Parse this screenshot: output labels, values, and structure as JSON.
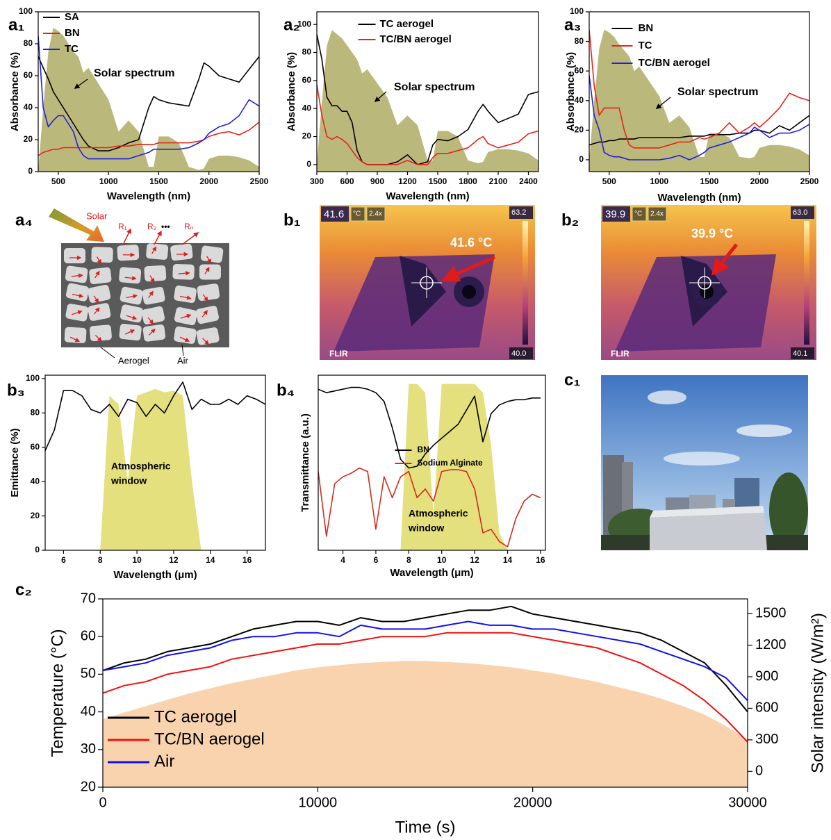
{
  "chart_data": [
    {
      "type": "line",
      "label": "a₁",
      "xlabel": "Wavelength (nm)",
      "ylabel": "Absorbance (%)",
      "x": [
        300,
        350,
        400,
        450,
        500,
        550,
        600,
        650,
        700,
        750,
        800,
        900,
        1000,
        1100,
        1200,
        1300,
        1400,
        1450,
        1500,
        1600,
        1700,
        1800,
        1900,
        1950,
        2000,
        2100,
        2200,
        2300,
        2400,
        2500
      ],
      "xlim": [
        300,
        2500
      ],
      "xticks": [
        500,
        1000,
        1500,
        2000,
        2500
      ],
      "ylim": [
        0,
        100
      ],
      "yticks": [
        0,
        20,
        40,
        60,
        80,
        100
      ],
      "legend": "upper left",
      "series": [
        {
          "name": "SA",
          "color": "#000000",
          "values": [
            72,
            65,
            58,
            50,
            45,
            40,
            35,
            30,
            25,
            20,
            16,
            13,
            13,
            15,
            18,
            20,
            40,
            47,
            45,
            43,
            42,
            41,
            58,
            68,
            66,
            60,
            58,
            56,
            64,
            72
          ]
        },
        {
          "name": "BN",
          "color": "#e8231b",
          "values": [
            10,
            12,
            13,
            14,
            14,
            15,
            15,
            15,
            15,
            15,
            15,
            15,
            15,
            16,
            16,
            17,
            17,
            17,
            18,
            18,
            18,
            18,
            19,
            20,
            22,
            24,
            25,
            23,
            26,
            31
          ]
        },
        {
          "name": "TC",
          "color": "#1f1fe0",
          "values": [
            85,
            40,
            28,
            32,
            35,
            35,
            30,
            25,
            15,
            10,
            8,
            8,
            8,
            8,
            8,
            10,
            12,
            14,
            14,
            14,
            14,
            15,
            18,
            20,
            24,
            28,
            30,
            35,
            45,
            41
          ]
        }
      ],
      "fill_series": {
        "label": "Solar spectrum",
        "color": "#aaa65a",
        "values": [
          0,
          40,
          75,
          90,
          88,
          85,
          80,
          75,
          72,
          62,
          65,
          55,
          45,
          25,
          32,
          25,
          3,
          3,
          22,
          22,
          18,
          3,
          1,
          2,
          8,
          10,
          10,
          9,
          7,
          3
        ]
      }
    },
    {
      "type": "line",
      "label": "a₂",
      "xlabel": "Wavelength (nm)",
      "ylabel": "Absorbance (%)",
      "x": [
        300,
        350,
        400,
        450,
        500,
        550,
        600,
        650,
        700,
        750,
        800,
        900,
        1000,
        1100,
        1200,
        1300,
        1400,
        1450,
        1500,
        1600,
        1700,
        1800,
        1900,
        1950,
        2000,
        2100,
        2200,
        2300,
        2400,
        2500
      ],
      "xlim": [
        300,
        2500
      ],
      "xticks": [
        300,
        600,
        900,
        1200,
        1500,
        1800,
        2100,
        2400
      ],
      "ylim": [
        -5,
        109
      ],
      "yticks": [
        0,
        20,
        40,
        60,
        80,
        100
      ],
      "legend": "upper center",
      "series": [
        {
          "name": "TC aerogel",
          "color": "#000000",
          "values": [
            93,
            75,
            48,
            42,
            42,
            38,
            38,
            30,
            10,
            2,
            0,
            0,
            0,
            2,
            7,
            0,
            2,
            14,
            18,
            17,
            20,
            25,
            38,
            43,
            38,
            30,
            33,
            36,
            50,
            52
          ]
        },
        {
          "name": "TC/BN aerogel",
          "color": "#e8231b",
          "values": [
            57,
            35,
            20,
            18,
            20,
            18,
            15,
            10,
            5,
            2,
            0,
            0,
            0,
            0,
            3,
            0,
            0,
            5,
            8,
            8,
            10,
            12,
            18,
            20,
            15,
            12,
            14,
            16,
            22,
            24
          ]
        }
      ],
      "fill_series": {
        "label": "Solar spectrum",
        "color": "#aaa65a",
        "values": [
          0,
          45,
          85,
          96,
          93,
          90,
          85,
          80,
          75,
          65,
          68,
          58,
          48,
          28,
          35,
          28,
          3,
          3,
          24,
          24,
          20,
          3,
          1,
          2,
          9,
          11,
          11,
          10,
          8,
          3
        ]
      }
    },
    {
      "type": "line",
      "label": "a₃",
      "xlabel": "Wavelength (nm)",
      "ylabel": "Absorbance (%)",
      "x": [
        300,
        350,
        400,
        450,
        500,
        550,
        600,
        650,
        700,
        750,
        800,
        900,
        1000,
        1100,
        1200,
        1300,
        1400,
        1450,
        1500,
        1600,
        1700,
        1800,
        1900,
        1950,
        2000,
        2100,
        2200,
        2300,
        2400,
        2500
      ],
      "xlim": [
        300,
        2500
      ],
      "xticks": [
        500,
        1000,
        1500,
        2000,
        2500
      ],
      "ylim": [
        -8,
        100
      ],
      "yticks": [
        0,
        20,
        40,
        60,
        80,
        100
      ],
      "legend": "upper center",
      "series": [
        {
          "name": "BN",
          "color": "#000000",
          "values": [
            10,
            11,
            12,
            12,
            13,
            13,
            14,
            14,
            14,
            14,
            15,
            15,
            15,
            15,
            15,
            16,
            16,
            16,
            17,
            17,
            17,
            18,
            18,
            20,
            20,
            18,
            23,
            20,
            25,
            30
          ]
        },
        {
          "name": "TC",
          "color": "#e8231b",
          "values": [
            88,
            50,
            30,
            35,
            35,
            35,
            35,
            20,
            10,
            8,
            8,
            8,
            8,
            10,
            12,
            12,
            15,
            14,
            15,
            18,
            25,
            18,
            22,
            25,
            22,
            28,
            35,
            45,
            42,
            40
          ]
        },
        {
          "name": "TC/BN aerogel",
          "color": "#1f1fe0",
          "values": [
            57,
            30,
            20,
            5,
            3,
            2,
            2,
            1,
            0,
            0,
            0,
            0,
            0,
            1,
            3,
            0,
            3,
            5,
            8,
            10,
            12,
            15,
            18,
            22,
            20,
            15,
            18,
            18,
            20,
            24
          ]
        }
      ],
      "fill_series": {
        "label": "Solar spectrum",
        "color": "#aaa65a",
        "values": [
          0,
          40,
          75,
          88,
          86,
          83,
          78,
          74,
          70,
          60,
          63,
          53,
          43,
          25,
          30,
          22,
          2,
          2,
          18,
          18,
          15,
          2,
          1,
          2,
          8,
          10,
          10,
          9,
          7,
          3
        ]
      }
    },
    {
      "type": "line",
      "label": "b₃",
      "xlabel": "Wavelength (μm)",
      "ylabel": "Emittance (%)",
      "x": [
        5,
        5.5,
        6,
        6.5,
        7,
        7.5,
        8,
        8.5,
        9,
        9.5,
        10,
        10.5,
        11,
        11.5,
        12,
        12.5,
        13,
        13.5,
        14,
        14.5,
        15,
        15.5,
        16,
        16.5,
        17
      ],
      "xlim": [
        5,
        17
      ],
      "xticks": [
        6,
        8,
        10,
        12,
        14,
        16
      ],
      "ylim": [
        0,
        102
      ],
      "yticks": [
        0,
        20,
        40,
        60,
        80,
        100
      ],
      "color": "#000000",
      "values": [
        58,
        70,
        93,
        93,
        90,
        82,
        80,
        85,
        78,
        88,
        86,
        78,
        85,
        80,
        90,
        98,
        82,
        88,
        85,
        85,
        88,
        85,
        90,
        88,
        85
      ],
      "fill_series": {
        "label": [
          "Atmospheric",
          "window"
        ],
        "color": "#dcd85c",
        "values": [
          0,
          0,
          0,
          0,
          0,
          0,
          0,
          90,
          85,
          40,
          90,
          92,
          94,
          92,
          93,
          90,
          40,
          0,
          0,
          0,
          0,
          0,
          0,
          0,
          0
        ]
      }
    },
    {
      "type": "line",
      "label": "b₄",
      "xlabel": "Wavelength (μm)",
      "ylabel": "Transmittance (a.u.)",
      "x": [
        2.5,
        3,
        3.5,
        4,
        4.5,
        5,
        5.5,
        6,
        6.5,
        7,
        7.5,
        8,
        8.5,
        9,
        9.5,
        10,
        10.5,
        11,
        11.5,
        12,
        12.5,
        13,
        13.5,
        14,
        14.5,
        15,
        15.5,
        16
      ],
      "xlim": [
        2.5,
        16.3
      ],
      "xticks": [
        4,
        6,
        8,
        10,
        12,
        14,
        16
      ],
      "ylim": [
        0,
        100
      ],
      "legend": "center",
      "series": [
        {
          "name": "BN",
          "color": "#000000",
          "values": [
            92,
            90,
            91,
            92,
            93,
            93,
            92,
            90,
            85,
            70,
            52,
            47,
            48,
            55,
            60,
            64,
            68,
            72,
            80,
            88,
            62,
            78,
            83,
            85,
            86,
            86,
            87,
            87
          ]
        },
        {
          "name": "Sodium Alginate",
          "color": "#d42a1e",
          "values": [
            45,
            8,
            38,
            42,
            44,
            47,
            45,
            12,
            42,
            30,
            42,
            45,
            30,
            35,
            28,
            45,
            46,
            46,
            45,
            35,
            10,
            12,
            5,
            2,
            18,
            28,
            32,
            30
          ]
        }
      ],
      "fill_series": {
        "label": [
          "Atmospheric",
          "window"
        ],
        "color": "#dcd85c",
        "values": [
          0,
          0,
          0,
          0,
          0,
          0,
          0,
          0,
          0,
          0,
          0,
          95,
          95,
          90,
          20,
          95,
          95,
          95,
          95,
          95,
          90,
          60,
          10,
          0,
          0,
          0,
          0,
          0
        ]
      }
    },
    {
      "type": "line",
      "label": "c₂",
      "xlabel": "Time (s)",
      "ylabel": "Temperature (°C)",
      "y2label": "Solar intensity (W/m²)",
      "x": [
        0,
        1000,
        2000,
        3000,
        4000,
        5000,
        6000,
        7000,
        8000,
        9000,
        10000,
        11000,
        12000,
        13000,
        14000,
        15000,
        16000,
        17000,
        18000,
        19000,
        20000,
        21000,
        22000,
        23000,
        24000,
        25000,
        26000,
        27000,
        28000,
        29000,
        30000
      ],
      "xlim": [
        0,
        30000
      ],
      "xticks": [
        0,
        10000,
        20000,
        30000
      ],
      "ylim": [
        20,
        70
      ],
      "yticks": [
        20,
        30,
        40,
        50,
        60,
        70
      ],
      "y2lim": [
        -150,
        1640
      ],
      "y2ticks": [
        0,
        300,
        600,
        900,
        1200,
        1500
      ],
      "legend": "lower left",
      "series": [
        {
          "name": "TC aerogel",
          "color": "#000000",
          "values": [
            51,
            53,
            54,
            56,
            57,
            58,
            60,
            62,
            63,
            64,
            64,
            63,
            65,
            64,
            64,
            65,
            66,
            67,
            67,
            68,
            66,
            65,
            64,
            63,
            62,
            61,
            59,
            56,
            53,
            47,
            40
          ]
        },
        {
          "name": "TC/BN aerogel",
          "color": "#f01010",
          "values": [
            45,
            47,
            48,
            50,
            51,
            52,
            54,
            55,
            56,
            57,
            58,
            58,
            59,
            60,
            60,
            60,
            61,
            61,
            61,
            61,
            60,
            59,
            58,
            57,
            55,
            53,
            50,
            47,
            43,
            38,
            32
          ]
        },
        {
          "name": "Air",
          "color": "#1010f0",
          "values": [
            51,
            52,
            53,
            55,
            56,
            57,
            59,
            60,
            60,
            61,
            61,
            60,
            63,
            62,
            62,
            62,
            63,
            64,
            63,
            63,
            62,
            62,
            61,
            60,
            59,
            58,
            56,
            54,
            52,
            49,
            43
          ]
        }
      ],
      "fill_series": {
        "axis": "y2",
        "color": "#f8d3ad",
        "values": [
          495,
          560,
          620,
          680,
          740,
          790,
          840,
          880,
          920,
          960,
          990,
          1010,
          1030,
          1040,
          1050,
          1050,
          1040,
          1030,
          1010,
          990,
          960,
          930,
          890,
          850,
          800,
          750,
          690,
          620,
          540,
          430,
          300
        ]
      }
    }
  ],
  "figures": {
    "a4": {
      "label": "a₄",
      "solar": "Solar",
      "r1": "R₁",
      "r2": "R₂",
      "dots": "•••",
      "rn": "Rₙ",
      "aerogel": "Aerogel",
      "air": "Air"
    },
    "b1": {
      "label": "b₁",
      "readout": "41.6",
      "unit": "°C",
      "zoom": "2.4x",
      "scale_max": "63.2",
      "scale_min": "40.0",
      "spot": "41.6 °C",
      "brand": "FLIR"
    },
    "b2": {
      "label": "b₂",
      "readout": "39.9",
      "unit": "°C",
      "zoom": "2.4x",
      "scale_max": "63.0",
      "scale_min": "40.1",
      "spot": "39.9 °C",
      "brand": "FLIR"
    },
    "c1": {
      "label": "c₁"
    }
  }
}
